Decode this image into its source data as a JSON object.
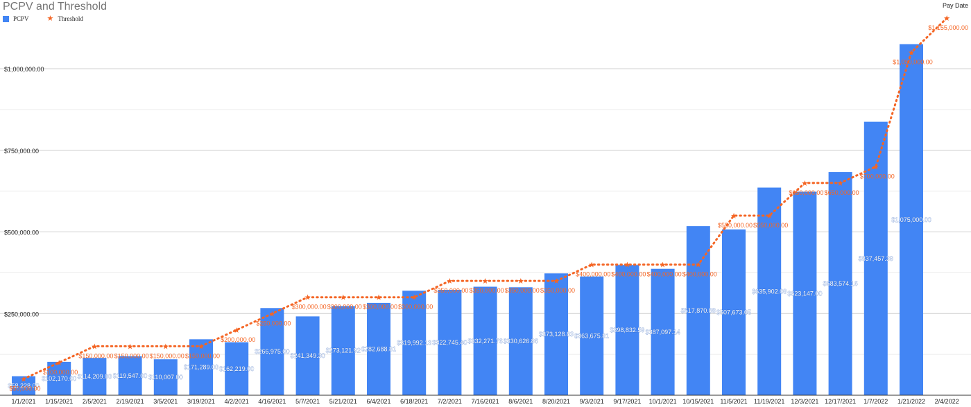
{
  "chart_data": {
    "type": "bar",
    "title": "PCPV and Threshold",
    "xlabel": "Pay Date",
    "ylabel": "",
    "ylim": [
      0,
      1200000
    ],
    "yticks": [
      250000,
      500000,
      750000,
      1000000
    ],
    "ytick_labels": [
      "$250,000.00",
      "$500,000.00",
      "$750,000.00",
      "$1,000,000.00"
    ],
    "grid": true,
    "legend_position": "top-left",
    "categories": [
      "1/1/2021",
      "1/15/2021",
      "2/5/2021",
      "2/19/2021",
      "3/5/2021",
      "3/19/2021",
      "4/2/2021",
      "4/16/2021",
      "5/7/2021",
      "5/21/2021",
      "6/4/2021",
      "6/18/2021",
      "7/2/2021",
      "7/16/2021",
      "8/6/2021",
      "8/20/2021",
      "9/3/2021",
      "9/17/2021",
      "10/1/2021",
      "10/15/2021",
      "11/5/2021",
      "11/19/2021",
      "12/3/2021",
      "12/17/2021",
      "1/7/2022",
      "1/21/2022",
      "2/4/2022"
    ],
    "series": [
      {
        "name": "PCPV",
        "kind": "bar",
        "color": "#4285f4",
        "values": [
          58228,
          102170,
          114209,
          119547,
          110007,
          171289,
          162219,
          266975,
          241349.3,
          273121.92,
          282688.81,
          319992.13,
          322745.4,
          332271.76,
          330626.86,
          373128.83,
          363675.81,
          398832.59,
          387097.14,
          517870.88,
          507673.05,
          635902.08,
          623147,
          683574.16,
          837457.39,
          1075000,
          null
        ],
        "labels": [
          "$58,228.00",
          "$102,170.00",
          "$114,209.00",
          "$119,547.00",
          "$110,007.00",
          "$171,289.00",
          "$162,219.00",
          "$266,975.00",
          "$241,349.30",
          "$273,121.92",
          "$282,688.81",
          "$319,992.13",
          "$322,745.40",
          "$332,271.76",
          "$330,626.86",
          "$373,128.83",
          "$363,675.81",
          "$398,832.59",
          "$387,097.14",
          "$517,870.88",
          "$507,673.05",
          "$635,902.08",
          "$623,147.00",
          "$683,574.16",
          "$837,457.39",
          "$1,075,000.00",
          ""
        ]
      },
      {
        "name": "Threshold",
        "kind": "line",
        "color": "#f46524",
        "values": [
          50000,
          100000,
          150000,
          150000,
          150000,
          150000,
          200000,
          250000,
          300000,
          300000,
          300000,
          300000,
          350000,
          350000,
          350000,
          350000,
          400000,
          400000,
          400000,
          400000,
          550000,
          550000,
          650000,
          650000,
          700000,
          1050000,
          1155000
        ],
        "labels": [
          "$50,000.00",
          "$100,000.00",
          "$150,000.00",
          "$150,000.00",
          "$150,000.00",
          "$150,000.00",
          "$200,000.00",
          "$250,000.00",
          "$300,000.00",
          "$300,000.00",
          "$300,000.00",
          "$300,000.00",
          "$350,000.00",
          "$350,000.00",
          "$350,000.00",
          "$350,000.00",
          "$400,000.00",
          "$400,000.00",
          "$400,000.00",
          "$400,000.00",
          "$550,000.00",
          "$550,000.00",
          "$650,000.00",
          "$650,000.00",
          "$700,000.00",
          "$1,050,000.00",
          "$1,155,000.00"
        ]
      }
    ]
  }
}
